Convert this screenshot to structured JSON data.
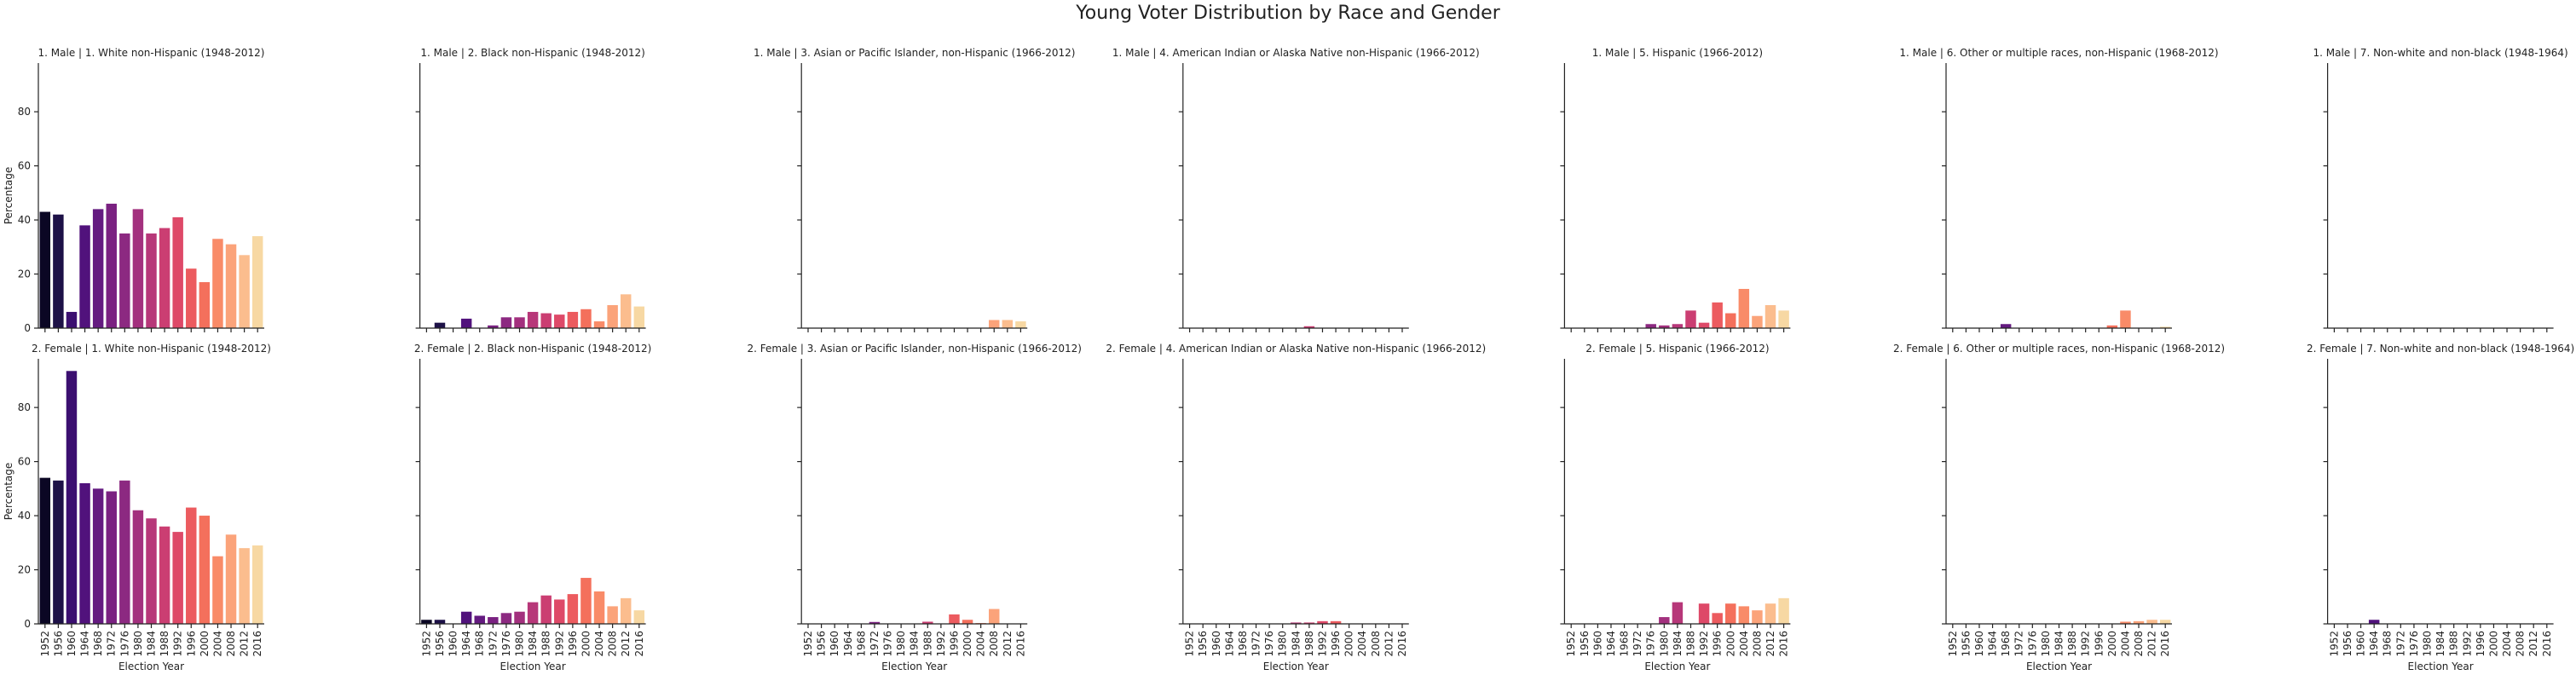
{
  "title": "Young Voter Distribution by Race and Gender",
  "palette": [
    "#0b0724",
    "#1d1147",
    "#3b0f70",
    "#51127c",
    "#641a80",
    "#7a2181",
    "#8c2981",
    "#a3307e",
    "#b73779",
    "#cb3e72",
    "#de4968",
    "#ec5b5f",
    "#f4705c",
    "#f98b68",
    "#fba37a",
    "#fbbd8e",
    "#f7d8a3"
  ],
  "chart_data": [
    {
      "type": "bar",
      "title": "1. Male | 1. White non-Hispanic (1948-2012)",
      "y_label": "Percentage",
      "categories": [
        "1952",
        "1956",
        "1960",
        "1964",
        "1968",
        "1972",
        "1976",
        "1980",
        "1984",
        "1988",
        "1992",
        "1996",
        "2000",
        "2004",
        "2008",
        "2012",
        "2016"
      ],
      "values": [
        43,
        42,
        6,
        38,
        44,
        46,
        35,
        44,
        35,
        37,
        41,
        22,
        17,
        33,
        31,
        27,
        34
      ],
      "ylim": [
        0,
        98
      ],
      "yticks": [
        0,
        20,
        40,
        60,
        80
      ]
    },
    {
      "type": "bar",
      "title": "1. Male | 2. Black non-Hispanic (1948-2012)",
      "categories": [
        "1952",
        "1956",
        "1960",
        "1964",
        "1968",
        "1972",
        "1976",
        "1980",
        "1984",
        "1988",
        "1992",
        "1996",
        "2000",
        "2004",
        "2008",
        "2012",
        "2016"
      ],
      "values": [
        0,
        2,
        0,
        3.5,
        0,
        1,
        4,
        4,
        6,
        5.5,
        5,
        6,
        7,
        2.5,
        8.5,
        12.5,
        8
      ],
      "ylim": [
        0,
        98
      ],
      "yticks": [
        0,
        20,
        40,
        60,
        80
      ]
    },
    {
      "type": "bar",
      "title": "1. Male | 3. Asian or Pacific Islander, non-Hispanic (1966-2012)",
      "categories": [
        "1952",
        "1956",
        "1960",
        "1964",
        "1968",
        "1972",
        "1976",
        "1980",
        "1984",
        "1988",
        "1992",
        "1996",
        "2000",
        "2004",
        "2008",
        "2012",
        "2016"
      ],
      "values": [
        0,
        0,
        0,
        0,
        0,
        0,
        0,
        0,
        0,
        0,
        0,
        0,
        0,
        0,
        3,
        3,
        2.5
      ],
      "ylim": [
        0,
        98
      ],
      "yticks": [
        0,
        20,
        40,
        60,
        80
      ]
    },
    {
      "type": "bar",
      "title": "1. Male | 4. American Indian or Alaska Native non-Hispanic (1966-2012)",
      "categories": [
        "1952",
        "1956",
        "1960",
        "1964",
        "1968",
        "1972",
        "1976",
        "1980",
        "1984",
        "1988",
        "1992",
        "1996",
        "2000",
        "2004",
        "2008",
        "2012",
        "2016"
      ],
      "values": [
        0,
        0,
        0,
        0,
        0,
        0,
        0,
        0,
        0,
        0.7,
        0,
        0,
        0,
        0,
        0,
        0,
        0
      ],
      "ylim": [
        0,
        98
      ],
      "yticks": [
        0,
        20,
        40,
        60,
        80
      ]
    },
    {
      "type": "bar",
      "title": "1. Male | 5. Hispanic (1966-2012)",
      "categories": [
        "1952",
        "1956",
        "1960",
        "1964",
        "1968",
        "1972",
        "1976",
        "1980",
        "1984",
        "1988",
        "1992",
        "1996",
        "2000",
        "2004",
        "2008",
        "2012",
        "2016"
      ],
      "values": [
        0,
        0,
        0,
        0,
        0,
        0,
        1.5,
        1,
        1.5,
        6.5,
        2,
        9.5,
        5.5,
        14.5,
        4.5,
        8.5,
        6.5
      ],
      "ylim": [
        0,
        98
      ],
      "yticks": [
        0,
        20,
        40,
        60,
        80
      ]
    },
    {
      "type": "bar",
      "title": "1. Male | 6. Other or multiple races, non-Hispanic (1968-2012)",
      "categories": [
        "1952",
        "1956",
        "1960",
        "1964",
        "1968",
        "1972",
        "1976",
        "1980",
        "1984",
        "1988",
        "1992",
        "1996",
        "2000",
        "2004",
        "2008",
        "2012",
        "2016"
      ],
      "values": [
        0,
        0,
        0,
        0,
        1.5,
        0,
        0,
        0,
        0,
        0,
        0,
        0,
        1,
        6.5,
        0,
        0,
        0.5
      ],
      "ylim": [
        0,
        98
      ],
      "yticks": [
        0,
        20,
        40,
        60,
        80
      ]
    },
    {
      "type": "bar",
      "title": "1. Male | 7. Non-white and non-black (1948-1964)",
      "categories": [
        "1952",
        "1956",
        "1960",
        "1964",
        "1968",
        "1972",
        "1976",
        "1980",
        "1984",
        "1988",
        "1992",
        "1996",
        "2000",
        "2004",
        "2008",
        "2012",
        "2016"
      ],
      "values": [
        0,
        0,
        0,
        0,
        0,
        0,
        0,
        0,
        0,
        0,
        0,
        0,
        0,
        0,
        0,
        0,
        0
      ],
      "ylim": [
        0,
        98
      ],
      "yticks": [
        0,
        20,
        40,
        60,
        80
      ]
    },
    {
      "type": "bar",
      "title": "2. Female | 1. White non-Hispanic (1948-2012)",
      "y_label": "Percentage",
      "x_label": "Election Year",
      "categories": [
        "1952",
        "1956",
        "1960",
        "1964",
        "1968",
        "1972",
        "1976",
        "1980",
        "1984",
        "1988",
        "1992",
        "1996",
        "2000",
        "2004",
        "2008",
        "2012",
        "2016"
      ],
      "values": [
        54,
        53,
        93.5,
        52,
        50,
        49,
        53,
        42,
        39,
        36,
        34,
        43,
        40,
        25,
        33,
        28,
        29
      ],
      "ylim": [
        0,
        98
      ],
      "yticks": [
        0,
        20,
        40,
        60,
        80
      ]
    },
    {
      "type": "bar",
      "title": "2. Female | 2. Black non-Hispanic (1948-2012)",
      "x_label": "Election Year",
      "categories": [
        "1952",
        "1956",
        "1960",
        "1964",
        "1968",
        "1972",
        "1976",
        "1980",
        "1984",
        "1988",
        "1992",
        "1996",
        "2000",
        "2004",
        "2008",
        "2012",
        "2016"
      ],
      "values": [
        1.5,
        1.5,
        0,
        4.5,
        3,
        2.5,
        4,
        4.5,
        8,
        10.5,
        9,
        11,
        17,
        12,
        6.5,
        9.5,
        5
      ],
      "ylim": [
        0,
        98
      ],
      "yticks": [
        0,
        20,
        40,
        60,
        80
      ]
    },
    {
      "type": "bar",
      "title": "2. Female | 3. Asian or Pacific Islander, non-Hispanic (1966-2012)",
      "x_label": "Election Year",
      "categories": [
        "1952",
        "1956",
        "1960",
        "1964",
        "1968",
        "1972",
        "1976",
        "1980",
        "1984",
        "1988",
        "1992",
        "1996",
        "2000",
        "2004",
        "2008",
        "2012",
        "2016"
      ],
      "values": [
        0,
        0,
        0,
        0,
        0,
        0.7,
        0,
        0,
        0,
        0.8,
        0,
        3.5,
        1.5,
        0.3,
        5.5,
        0,
        0
      ],
      "ylim": [
        0,
        98
      ],
      "yticks": [
        0,
        20,
        40,
        60,
        80
      ]
    },
    {
      "type": "bar",
      "title": "2. Female | 4. American Indian or Alaska Native non-Hispanic (1966-2012)",
      "x_label": "Election Year",
      "categories": [
        "1952",
        "1956",
        "1960",
        "1964",
        "1968",
        "1972",
        "1976",
        "1980",
        "1984",
        "1988",
        "1992",
        "1996",
        "2000",
        "2004",
        "2008",
        "2012",
        "2016"
      ],
      "values": [
        0,
        0,
        0,
        0,
        0,
        0,
        0,
        0,
        0.5,
        0.5,
        1,
        1,
        0,
        0,
        0,
        0,
        0
      ],
      "ylim": [
        0,
        98
      ],
      "yticks": [
        0,
        20,
        40,
        60,
        80
      ]
    },
    {
      "type": "bar",
      "title": "2. Female | 5. Hispanic (1966-2012)",
      "x_label": "Election Year",
      "categories": [
        "1952",
        "1956",
        "1960",
        "1964",
        "1968",
        "1972",
        "1976",
        "1980",
        "1984",
        "1988",
        "1992",
        "1996",
        "2000",
        "2004",
        "2008",
        "2012",
        "2016"
      ],
      "values": [
        0,
        0,
        0,
        0,
        0,
        0,
        0,
        2.5,
        8,
        0,
        7.5,
        4,
        7.5,
        6.5,
        5,
        7.5,
        9.5
      ],
      "ylim": [
        0,
        98
      ],
      "yticks": [
        0,
        20,
        40,
        60,
        80
      ]
    },
    {
      "type": "bar",
      "title": "2. Female | 6. Other or multiple races, non-Hispanic (1968-2012)",
      "x_label": "Election Year",
      "categories": [
        "1952",
        "1956",
        "1960",
        "1964",
        "1968",
        "1972",
        "1976",
        "1980",
        "1984",
        "1988",
        "1992",
        "1996",
        "2000",
        "2004",
        "2008",
        "2012",
        "2016"
      ],
      "values": [
        0,
        0,
        0,
        0,
        0,
        0,
        0,
        0,
        0,
        0,
        0,
        0,
        0,
        0.8,
        1,
        1.5,
        1.5
      ],
      "ylim": [
        0,
        98
      ],
      "yticks": [
        0,
        20,
        40,
        60,
        80
      ]
    },
    {
      "type": "bar",
      "title": "2. Female | 7. Non-white and non-black (1948-1964)",
      "x_label": "Election Year",
      "categories": [
        "1952",
        "1956",
        "1960",
        "1964",
        "1968",
        "1972",
        "1976",
        "1980",
        "1984",
        "1988",
        "1992",
        "1996",
        "2000",
        "2004",
        "2008",
        "2012",
        "2016"
      ],
      "values": [
        0,
        0,
        0,
        1.5,
        0,
        0,
        0,
        0,
        0,
        0,
        0,
        0,
        0,
        0,
        0,
        0,
        0
      ],
      "ylim": [
        0,
        98
      ],
      "yticks": [
        0,
        20,
        40,
        60,
        80
      ]
    }
  ]
}
